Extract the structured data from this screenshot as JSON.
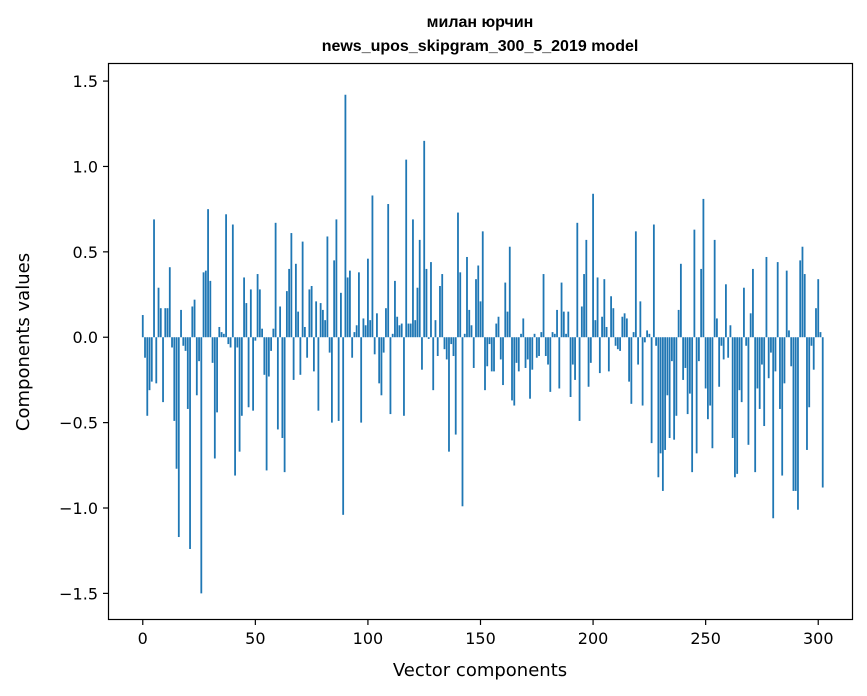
{
  "chart_data": {
    "type": "bar",
    "title_line1": "милан юрчин",
    "title_line2": "news_upos_skipgram_300_5_2019 model",
    "xlabel": "Vector components",
    "ylabel": "Components values",
    "xlim": [
      -15,
      315
    ],
    "ylim": [
      -1.65,
      1.6
    ],
    "xticks": [
      0,
      50,
      100,
      150,
      200,
      250,
      300
    ],
    "xtick_labels": [
      "0",
      "50",
      "100",
      "150",
      "200",
      "250",
      "300"
    ],
    "yticks": [
      -1.5,
      -1.0,
      -0.5,
      0.0,
      0.5,
      1.0,
      1.5
    ],
    "ytick_labels": [
      "−1.5",
      "−1.0",
      "−0.5",
      "0.0",
      "0.5",
      "1.0",
      "1.5"
    ],
    "bar_color": "#1f77b4",
    "values": [
      0.13,
      -0.12,
      -0.46,
      -0.31,
      -0.26,
      0.69,
      -0.27,
      0.29,
      0.17,
      -0.38,
      0.17,
      0.17,
      0.41,
      -0.06,
      -0.49,
      -0.77,
      -1.17,
      0.16,
      -0.05,
      -0.08,
      -0.42,
      -1.24,
      0.18,
      0.22,
      -0.34,
      -0.14,
      -1.5,
      0.38,
      0.39,
      0.75,
      0.33,
      -0.15,
      -0.71,
      -0.44,
      0.06,
      0.03,
      0.02,
      0.72,
      -0.04,
      -0.06,
      0.66,
      -0.81,
      -0.06,
      -0.67,
      -0.46,
      0.35,
      0.2,
      -0.41,
      0.28,
      -0.43,
      -0.02,
      0.37,
      0.28,
      0.05,
      -0.22,
      -0.78,
      -0.23,
      -0.08,
      0.05,
      0.67,
      -0.54,
      0.18,
      -0.59,
      -0.79,
      0.27,
      0.4,
      0.61,
      -0.25,
      0.43,
      0.15,
      -0.22,
      0.56,
      0.06,
      -0.12,
      0.28,
      0.3,
      -0.2,
      0.21,
      -0.43,
      0.2,
      0.16,
      0.1,
      0.59,
      -0.09,
      -0.5,
      0.45,
      0.69,
      -0.49,
      0.26,
      -1.04,
      1.42,
      0.35,
      0.39,
      -0.12,
      0.03,
      0.07,
      0.38,
      -0.5,
      0.11,
      0.07,
      0.46,
      0.1,
      0.83,
      -0.1,
      0.14,
      -0.27,
      -0.34,
      -0.09,
      0.17,
      0.78,
      -0.45,
      0.02,
      0.33,
      0.12,
      0.07,
      0.08,
      -0.46,
      1.04,
      0.08,
      0.08,
      0.69,
      0.1,
      0.29,
      0.57,
      -0.19,
      1.15,
      0.4,
      -0.01,
      0.44,
      -0.31,
      0.1,
      -0.11,
      0.3,
      0.37,
      -0.07,
      -0.13,
      -0.67,
      -0.04,
      -0.11,
      -0.57,
      0.73,
      0.38,
      -0.99,
      0.02,
      0.47,
      0.16,
      0.07,
      -0.18,
      0.34,
      0.42,
      0.21,
      0.62,
      -0.31,
      -0.17,
      -0.04,
      -0.2,
      -0.2,
      0.08,
      0.12,
      -0.13,
      -0.28,
      0.32,
      0.15,
      0.53,
      -0.37,
      -0.4,
      -0.15,
      -0.2,
      0.02,
      0.11,
      -0.18,
      -0.13,
      -0.36,
      -0.19,
      0.02,
      -0.12,
      -0.11,
      0.03,
      0.37,
      -0.11,
      -0.16,
      -0.32,
      0.03,
      0.02,
      0.16,
      -0.3,
      0.32,
      0.15,
      0.02,
      0.15,
      -0.35,
      -0.16,
      -0.25,
      0.67,
      -0.49,
      0.18,
      0.37,
      0.57,
      -0.29,
      -0.15,
      0.84,
      0.1,
      0.35,
      -0.21,
      0.12,
      0.34,
      0.06,
      -0.2,
      0.24,
      0.17,
      -0.05,
      -0.07,
      -0.08,
      0.12,
      0.14,
      0.11,
      -0.26,
      -0.39,
      0.03,
      0.62,
      -0.16,
      0.21,
      -0.4,
      -0.03,
      0.04,
      0.02,
      -0.62,
      0.66,
      -0.05,
      -0.82,
      -0.68,
      -0.9,
      -0.66,
      -0.34,
      -0.59,
      -0.14,
      -0.6,
      -0.46,
      0.16,
      0.43,
      -0.25,
      -0.18,
      -0.45,
      -0.33,
      -0.79,
      0.63,
      -0.68,
      -0.14,
      0.4,
      0.81,
      -0.3,
      -0.48,
      -0.4,
      -0.65,
      0.57,
      0.11,
      -0.29,
      -0.05,
      -0.13,
      0.31,
      -0.12,
      0.07,
      -0.59,
      -0.82,
      -0.8,
      -0.31,
      -0.38,
      0.29,
      -0.05,
      -0.63,
      0.14,
      0.4,
      -0.79,
      -0.3,
      -0.42,
      -0.16,
      -0.52,
      0.47,
      -0.24,
      -0.09,
      -1.06,
      -0.2,
      0.44,
      -0.42,
      -0.81,
      -0.27,
      0.39,
      0.04,
      -0.17,
      -0.9,
      -0.9,
      -1.01,
      0.45,
      0.53,
      0.37,
      -0.66,
      -0.41,
      -0.05,
      -0.19,
      0.17,
      0.34,
      0.03,
      -0.88
    ]
  }
}
